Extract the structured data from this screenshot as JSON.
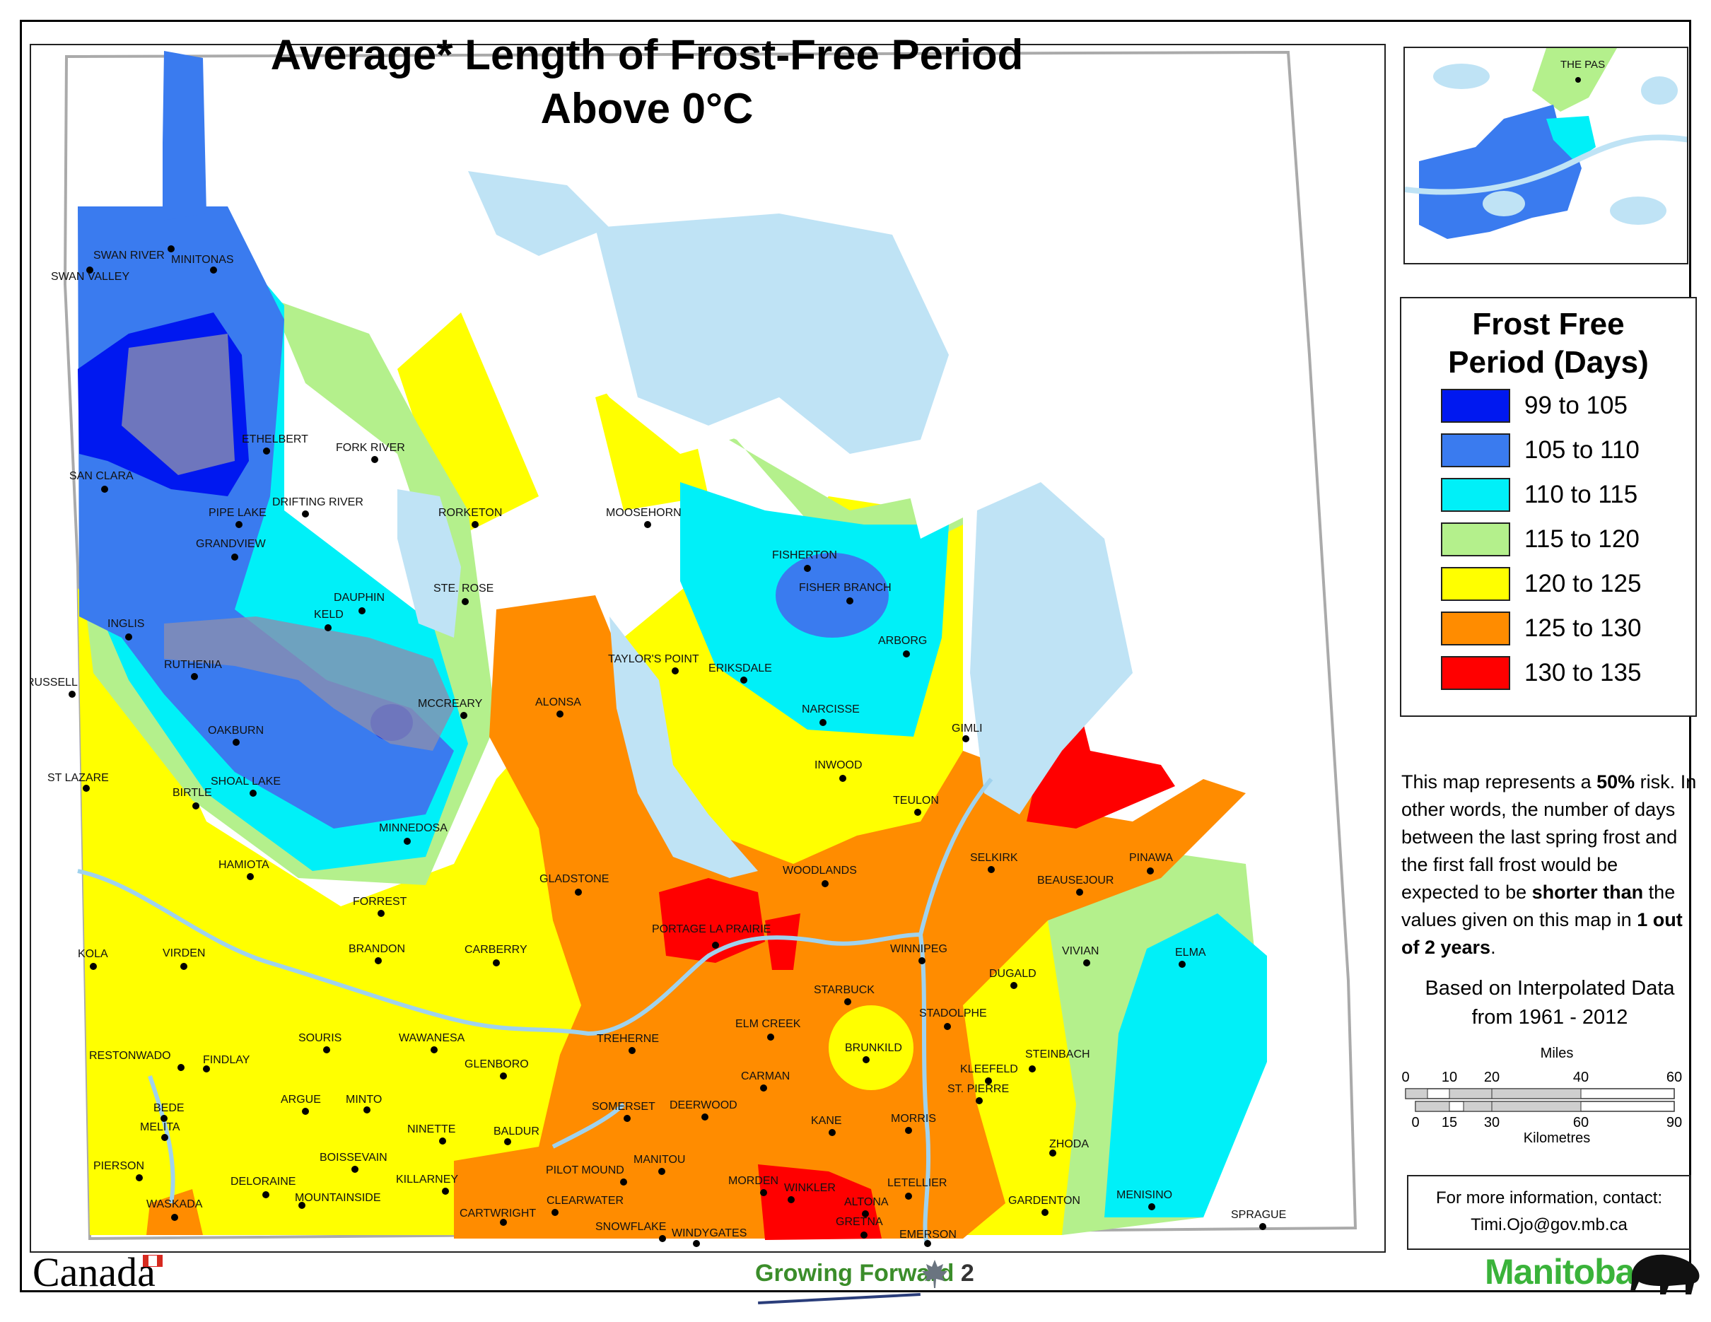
{
  "title": {
    "line1": "Average* Length of Frost-Free Period",
    "line2": "Above 0°C"
  },
  "legend": {
    "title_line1": "Frost Free",
    "title_line2": "Period (Days)",
    "classes": [
      {
        "label": "99 to 105",
        "color": "#0018f0"
      },
      {
        "label": "105 to 110",
        "color": "#3a7bef"
      },
      {
        "label": "110 to 115",
        "color": "#00f0f8"
      },
      {
        "label": "115 to 120",
        "color": "#b4f08c"
      },
      {
        "label": "120 to 125",
        "color": "#ffff00"
      },
      {
        "label": "125 to 130",
        "color": "#ff8c00"
      },
      {
        "label": "130 to 135",
        "color": "#ff0000"
      }
    ]
  },
  "note": {
    "p1": "This map represents a ",
    "p1_bold": "50%",
    "p1_end": " risk.",
    "p2": "In other words, the number of days between the last spring frost and the first fall frost would be expected to be ",
    "p2_bold": "shorter than",
    "p2_end": " the values given on this map in ",
    "p2_bold2": "1 out of 2 years",
    "p2_final": "."
  },
  "source": {
    "line1": "Based on Interpolated Data",
    "line2": "from 1961 - 2012"
  },
  "scale": {
    "miles_label": "Miles",
    "miles_ticks": [
      "0",
      "10",
      "20",
      "40",
      "60"
    ],
    "km_label": "Kilometres",
    "km_ticks": [
      "0",
      "15",
      "30",
      "60",
      "90"
    ]
  },
  "contact": {
    "line1": "For more information, contact:",
    "line2": "Timi.Ojo@gov.mb.ca"
  },
  "inset": {
    "town": "THE PAS"
  },
  "logos": {
    "canada": "Canada",
    "growing_forward_1": "Growing Forward",
    "growing_forward_2": " 2",
    "manitoba": "Manitoba"
  },
  "map": {
    "colors": {
      "water": "#bfe3f5",
      "park": "#8a8fb0",
      "highway": "#9fd2ee",
      "boundary": "#bdbdbd"
    },
    "towns": [
      {
        "name": "SWAN RIVER"
      },
      {
        "name": "MINITONAS"
      },
      {
        "name": "SWAN VALLEY"
      },
      {
        "name": "ETHELBERT"
      },
      {
        "name": "FORK RIVER"
      },
      {
        "name": "SAN CLARA"
      },
      {
        "name": "PIPE LAKE"
      },
      {
        "name": "DRIFTING RIVER"
      },
      {
        "name": "RORKETON"
      },
      {
        "name": "MOOSEHORN"
      },
      {
        "name": "GRANDVIEW"
      },
      {
        "name": "DAUPHIN"
      },
      {
        "name": "STE. ROSE"
      },
      {
        "name": "FISHERTON"
      },
      {
        "name": "FISHER BRANCH"
      },
      {
        "name": "KELD"
      },
      {
        "name": "INGLIS"
      },
      {
        "name": "ARBORG"
      },
      {
        "name": "RUTHENIA"
      },
      {
        "name": "TAYLOR'S POINT"
      },
      {
        "name": "ERIKSDALE"
      },
      {
        "name": "RUSSELL"
      },
      {
        "name": "MCCREARY"
      },
      {
        "name": "ALONSA"
      },
      {
        "name": "NARCISSE"
      },
      {
        "name": "OAKBURN"
      },
      {
        "name": "GIMLI"
      },
      {
        "name": "ST LAZARE"
      },
      {
        "name": "SHOAL LAKE"
      },
      {
        "name": "INWOOD"
      },
      {
        "name": "BIRTLE"
      },
      {
        "name": "TEULON"
      },
      {
        "name": "MINNEDOSA"
      },
      {
        "name": "HAMIOTA"
      },
      {
        "name": "SELKIRK"
      },
      {
        "name": "PINAWA"
      },
      {
        "name": "GLADSTONE"
      },
      {
        "name": "WOODLANDS"
      },
      {
        "name": "BEAUSEJOUR"
      },
      {
        "name": "FORREST"
      },
      {
        "name": "PORTAGE LA PRAIRIE"
      },
      {
        "name": "BRANDON"
      },
      {
        "name": "WINNIPEG"
      },
      {
        "name": "VIVIAN"
      },
      {
        "name": "ELMA"
      },
      {
        "name": "KOLA"
      },
      {
        "name": "VIRDEN"
      },
      {
        "name": "CARBERRY"
      },
      {
        "name": "DUGALD"
      },
      {
        "name": "STARBUCK"
      },
      {
        "name": "STADOLPHE"
      },
      {
        "name": "ELM CREEK"
      },
      {
        "name": "TREHERNE"
      },
      {
        "name": "SOURIS"
      },
      {
        "name": "WAWANESA"
      },
      {
        "name": "BRUNKILD"
      },
      {
        "name": "RESTONWADO"
      },
      {
        "name": "FINDLAY"
      },
      {
        "name": "GLENBORO"
      },
      {
        "name": "KLEEFELD"
      },
      {
        "name": "STEINBACH"
      },
      {
        "name": "CARMAN"
      },
      {
        "name": "ST. PIERRE"
      },
      {
        "name": "BEDE"
      },
      {
        "name": "ARGUE"
      },
      {
        "name": "MINTO"
      },
      {
        "name": "SOMERSET"
      },
      {
        "name": "DEERWOOD"
      },
      {
        "name": "MELITA"
      },
      {
        "name": "KANE"
      },
      {
        "name": "MORRIS"
      },
      {
        "name": "NINETTE"
      },
      {
        "name": "BALDUR"
      },
      {
        "name": "ZHODA"
      },
      {
        "name": "PIERSON"
      },
      {
        "name": "BOISSEVAIN"
      },
      {
        "name": "MANITOU"
      },
      {
        "name": "PILOT MOUND"
      },
      {
        "name": "DELORAINE"
      },
      {
        "name": "KILLARNEY"
      },
      {
        "name": "MORDEN"
      },
      {
        "name": "LETELLIER"
      },
      {
        "name": "MENISINO"
      },
      {
        "name": "WINKLER"
      },
      {
        "name": "GARDENTON"
      },
      {
        "name": "WASKADA"
      },
      {
        "name": "MOUNTAINSIDE"
      },
      {
        "name": "CARTWRIGHT"
      },
      {
        "name": "CLEARWATER"
      },
      {
        "name": "ALTONA"
      },
      {
        "name": "SPRAGUE"
      },
      {
        "name": "GRETNA"
      },
      {
        "name": "SNOWFLAKE"
      },
      {
        "name": "WINDYGATES"
      },
      {
        "name": "EMERSON"
      }
    ]
  }
}
